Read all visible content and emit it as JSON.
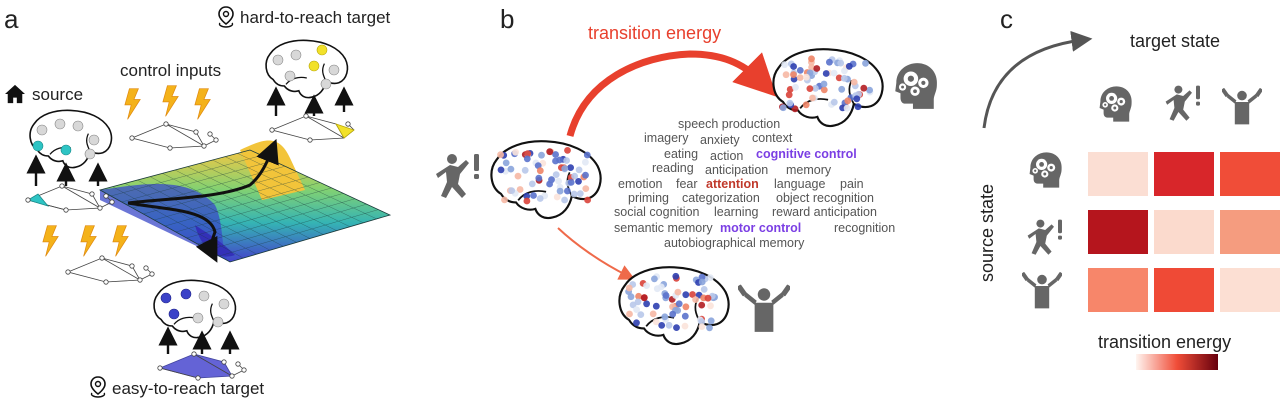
{
  "panels": {
    "a": "a",
    "b": "b",
    "c": "c"
  },
  "panel_a": {
    "source_label": "source",
    "control_inputs_label": "control inputs",
    "hard_target_label": "hard-to-reach target",
    "easy_target_label": "easy-to-reach target"
  },
  "panel_b": {
    "transition_energy_label": "transition energy",
    "words": [
      "speech production",
      "imagery",
      "anxiety",
      "context",
      "eating",
      "action",
      "cognitive control",
      "reading",
      "anticipation",
      "memory",
      "emotion",
      "fear",
      "attention",
      "language",
      "pain",
      "priming",
      "categorization",
      "object recognition",
      "social cognition",
      "learning",
      "reward anticipation",
      "semantic memory",
      "motor control",
      "recognition",
      "autobiographical memory"
    ]
  },
  "panel_c": {
    "target_state_label": "target state",
    "source_state_label": "source state",
    "colorbar_label": "transition energy",
    "row_states": [
      "cognitive",
      "motor-alert",
      "motor-exercise"
    ],
    "col_states": [
      "cognitive",
      "motor-alert",
      "motor-exercise"
    ],
    "matrix": [
      [
        "#fbded3",
        "#d8262a",
        "#f04d38"
      ],
      [
        "#b5151d",
        "#fbdacd",
        "#f59c7f"
      ],
      [
        "#f7866a",
        "#ef4a36",
        "#fcdfd3"
      ]
    ],
    "colorbar": {
      "low": "#fff5f0",
      "high": "#67000d"
    }
  }
}
